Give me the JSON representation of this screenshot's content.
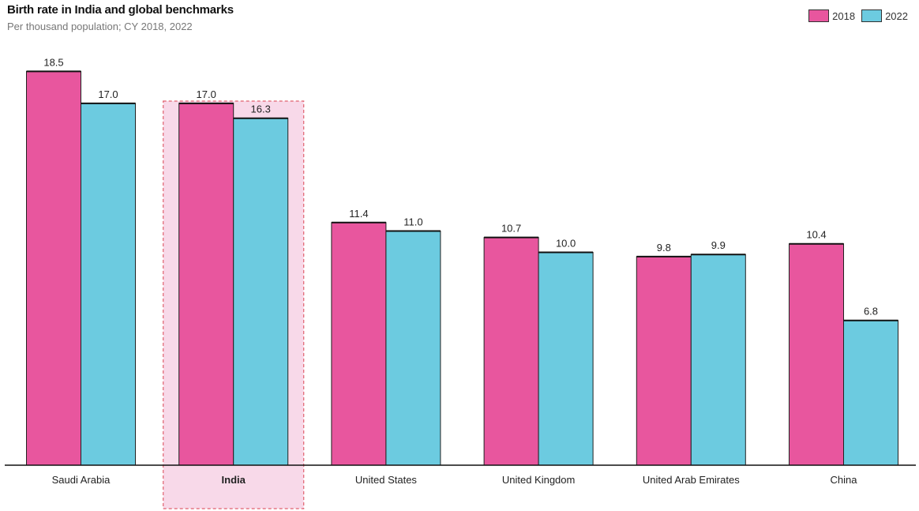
{
  "chart_data": {
    "type": "bar",
    "title": "Birth rate in India and global benchmarks",
    "subtitle": "Per thousand population; CY 2018, 2022",
    "categories": [
      "Saudi Arabia",
      "India",
      "United States",
      "United Kingdom",
      "United Arab Emirates",
      "China"
    ],
    "highlight_category": "India",
    "series": [
      {
        "name": "2018",
        "color": "#e8569e",
        "values": [
          18.5,
          17.0,
          11.4,
          10.7,
          9.8,
          10.4
        ]
      },
      {
        "name": "2022",
        "color": "#6ccbe0",
        "values": [
          17.0,
          16.3,
          11.0,
          10.0,
          9.9,
          6.8
        ]
      }
    ],
    "value_labels": [
      [
        "18.5",
        "17.0",
        "11.4",
        "10.7",
        "9.8",
        "10.4"
      ],
      [
        "17.0",
        "16.3",
        "11.0",
        "10.0",
        "9.9",
        "6.8"
      ]
    ],
    "ylim": [
      0,
      20
    ],
    "grid": false,
    "legend_position": "top-right",
    "highlight_color": "#f8d9e9",
    "highlight_border_color": "#e0626f"
  }
}
